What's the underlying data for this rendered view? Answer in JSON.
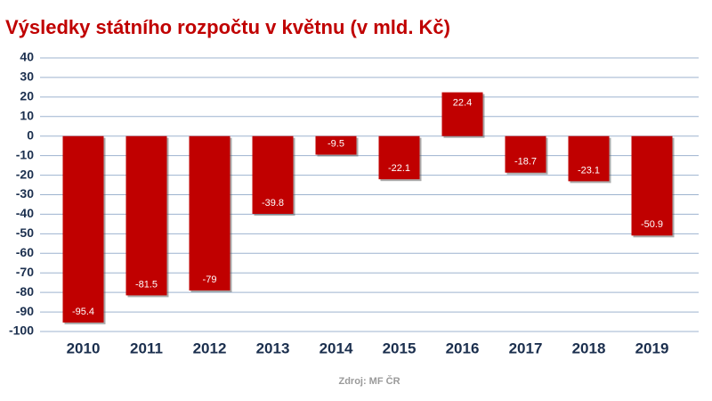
{
  "chart_data": {
    "type": "bar",
    "title": "Výsledky státního rozpočtu v květnu (v mld. Kč)",
    "categories": [
      "2010",
      "2011",
      "2012",
      "2013",
      "2014",
      "2015",
      "2016",
      "2017",
      "2018",
      "2019"
    ],
    "values": [
      -95.4,
      -81.5,
      -79,
      -39.8,
      -9.5,
      -22.1,
      22.4,
      -18.7,
      -23.1,
      -50.9
    ],
    "color": "#c00000",
    "ylim": [
      -100,
      40
    ],
    "yticks": [
      40,
      30,
      20,
      10,
      0,
      -10,
      -20,
      -30,
      -40,
      -50,
      -60,
      -70,
      -80,
      -90,
      -100
    ],
    "grid": true,
    "source": "Zdroj: MF ČR"
  }
}
